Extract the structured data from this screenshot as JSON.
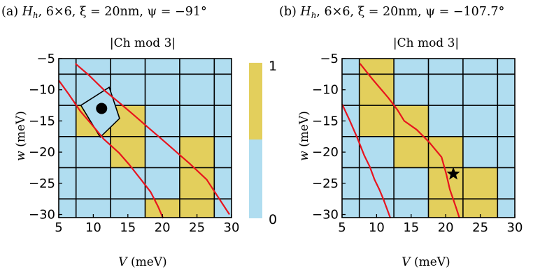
{
  "colors": {
    "blue": "#b0ddf0",
    "yellow": "#e3cf5c",
    "grid": "#000000",
    "red": "#e8141e"
  },
  "colorbar": {
    "max_label": "1",
    "min_label": "0"
  },
  "panels": [
    {
      "caption_prefix": "(a) ",
      "caption_H": "H",
      "caption_H_sub": "h",
      "caption_rest": ", 6×6, ξ = 20nm, ψ = −91°",
      "title": "|Ch mod 3|",
      "xlabel_var": "V",
      "xlabel_unit": " (meV)",
      "ylabel_var": "w",
      "ylabel_unit": " (meV)",
      "xticks": [
        "5",
        "10",
        "15",
        "20",
        "25",
        "30"
      ],
      "yticks": [
        "−5",
        "−10",
        "−15",
        "−20",
        "−25",
        "−30"
      ]
    },
    {
      "caption_prefix": "(b) ",
      "caption_H": "H",
      "caption_H_sub": "h",
      "caption_rest": ", 6×6, ξ = 20nm, ψ = −107.7°",
      "title": "|Ch mod 3|",
      "xlabel_var": "V",
      "xlabel_unit": " (meV)",
      "ylabel_var": "w",
      "ylabel_unit": " (meV)",
      "xticks": [
        "5",
        "10",
        "15",
        "20",
        "25",
        "30"
      ],
      "yticks": [
        "−5",
        "−10",
        "−15",
        "−20",
        "−25",
        "−30"
      ]
    }
  ],
  "chart_data": [
    {
      "type": "heatmap",
      "title": "|Ch mod 3|",
      "xlabel": "V (meV)",
      "ylabel": "w (meV)",
      "xlim": [
        5,
        30
      ],
      "ylim": [
        -30.5,
        -5
      ],
      "x_edges": [
        5,
        7.5,
        12.5,
        17.5,
        22.5,
        27.5,
        30
      ],
      "y_edges": [
        -5,
        -7.5,
        -12.5,
        -17.5,
        -22.5,
        -27.5,
        -30.5
      ],
      "values_by_row_top_to_bottom": [
        [
          0,
          0,
          0,
          0,
          0,
          0
        ],
        [
          0,
          0,
          0,
          0,
          0,
          0
        ],
        [
          0,
          1,
          1,
          0,
          0,
          0
        ],
        [
          0,
          0,
          1,
          0,
          1,
          0
        ],
        [
          0,
          0,
          0,
          0,
          1,
          0
        ],
        [
          0,
          0,
          0,
          1,
          1,
          0
        ]
      ],
      "colorbar_range": [
        0,
        1
      ],
      "extra_polygon": [
        [
          8.2,
          -12.5
        ],
        [
          12.3,
          -9.6
        ],
        [
          13.8,
          -14.6
        ],
        [
          11.0,
          -17.6
        ]
      ],
      "marker": {
        "shape": "circle",
        "x": 11.2,
        "y": -13.0
      },
      "red_curves": [
        {
          "x": [
            7.4,
            9.3,
            11.7,
            13.9,
            15.7,
            18.3,
            20.6,
            23.9,
            26.4,
            29.7
          ],
          "y": [
            -5.8,
            -7.6,
            -10.2,
            -12.2,
            -13.9,
            -16.4,
            -18.6,
            -21.8,
            -24.4,
            -30.0
          ]
        },
        {
          "x": [
            5.0,
            6.5,
            8.1,
            9.8,
            11.5,
            13.7,
            15.2,
            16.9,
            18.3,
            19.4,
            20.1
          ],
          "y": [
            -8.5,
            -10.8,
            -13.4,
            -15.6,
            -17.9,
            -20.1,
            -22.0,
            -24.4,
            -26.4,
            -28.8,
            -30.6
          ]
        }
      ]
    },
    {
      "type": "heatmap",
      "title": "|Ch mod 3|",
      "xlabel": "V (meV)",
      "ylabel": "w (meV)",
      "xlim": [
        5,
        30
      ],
      "ylim": [
        -30.5,
        -5
      ],
      "x_edges": [
        5,
        7.5,
        12.5,
        17.5,
        22.5,
        27.5,
        30
      ],
      "y_edges": [
        -5,
        -7.5,
        -12.5,
        -17.5,
        -22.5,
        -27.5,
        -30.5
      ],
      "values_by_row_top_to_bottom": [
        [
          0,
          1,
          0,
          0,
          0,
          0
        ],
        [
          0,
          1,
          0,
          0,
          0,
          0
        ],
        [
          0,
          1,
          1,
          0,
          0,
          0
        ],
        [
          0,
          0,
          1,
          1,
          0,
          0
        ],
        [
          0,
          0,
          0,
          1,
          1,
          0
        ],
        [
          0,
          0,
          0,
          1,
          1,
          0
        ]
      ],
      "colorbar_range": [
        0,
        1
      ],
      "extra_polygon": null,
      "marker": {
        "shape": "star",
        "x": 21.1,
        "y": -23.5
      },
      "red_curves": [
        {
          "x": [
            7.6,
            9.4,
            11.7,
            13.0,
            14.0,
            15.8,
            17.6,
            19.4,
            20.1,
            20.6,
            21.5,
            22.0
          ],
          "y": [
            -5.8,
            -8.3,
            -11.3,
            -13.2,
            -15.0,
            -16.4,
            -18.4,
            -20.8,
            -23.6,
            -26.0,
            -28.9,
            -30.6
          ]
        },
        {
          "x": [
            5.0,
            6.1,
            7.2,
            8.2,
            9.0,
            9.7,
            10.4,
            11.0,
            11.6,
            12.0
          ],
          "y": [
            -12.3,
            -14.9,
            -17.7,
            -20.5,
            -22.3,
            -24.4,
            -26.0,
            -27.6,
            -29.4,
            -30.6
          ]
        }
      ]
    }
  ]
}
